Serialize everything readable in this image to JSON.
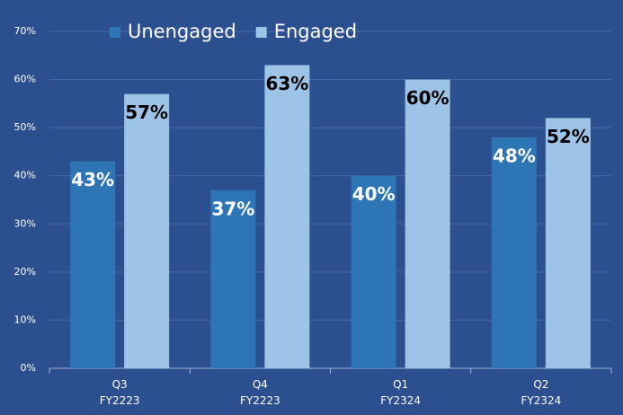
{
  "chart_data": {
    "type": "bar",
    "categories": [
      [
        "Q3",
        "FY2223"
      ],
      [
        "Q4",
        "FY2223"
      ],
      [
        "Q1",
        "FY2324"
      ],
      [
        "Q2",
        "FY2324"
      ]
    ],
    "series": [
      {
        "name": "Unengaged",
        "color": "#2e75b6",
        "values": [
          43,
          37,
          40,
          48
        ],
        "value_labels": [
          "43%",
          "37%",
          "40%",
          "48%"
        ]
      },
      {
        "name": "Engaged",
        "color": "#9dc3e6",
        "values": [
          57,
          63,
          60,
          52
        ],
        "value_labels": [
          "57%",
          "63%",
          "60%",
          "52%"
        ]
      }
    ],
    "ylim": [
      0,
      70
    ],
    "yticks": [
      {
        "value": 0,
        "label": "0%"
      },
      {
        "value": 10,
        "label": "10%"
      },
      {
        "value": 20,
        "label": "20%"
      },
      {
        "value": 30,
        "label": "30%"
      },
      {
        "value": 40,
        "label": "40%"
      },
      {
        "value": 50,
        "label": "50%"
      },
      {
        "value": 60,
        "label": "60%"
      },
      {
        "value": 70,
        "label": "70%"
      }
    ],
    "grid": true,
    "legend": "top"
  }
}
